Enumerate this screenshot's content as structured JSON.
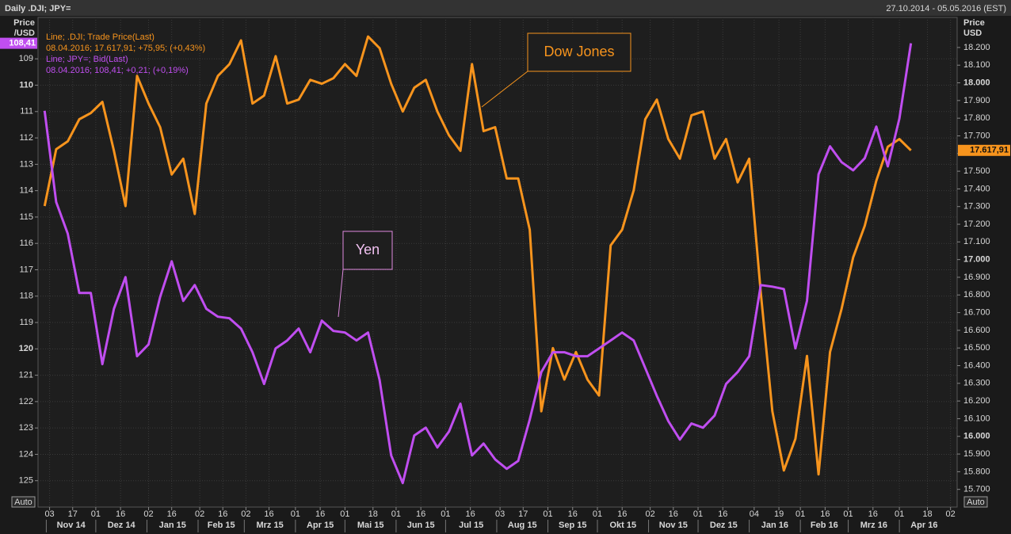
{
  "chart_data": {
    "type": "line",
    "title": "Daily .DJI; JPY=",
    "subtitle": "27.10.2014 - 05.05.2016 (EST)",
    "ylabel": "Price",
    "ylabel_unit": "/USD",
    "y2label": "Price",
    "y2label_unit": "USD",
    "auto_buttons": [
      "Auto",
      "Auto"
    ],
    "annotations": [
      "Dow Jones",
      "Yen"
    ],
    "grid": true,
    "x": [
      "2014-10-31",
      "2014-11-07",
      "2014-11-14",
      "2014-11-21",
      "2014-11-28",
      "2014-12-05",
      "2014-12-12",
      "2014-12-19",
      "2014-12-26",
      "2015-01-02",
      "2015-01-09",
      "2015-01-16",
      "2015-01-23",
      "2015-01-30",
      "2015-02-06",
      "2015-02-13",
      "2015-02-20",
      "2015-02-27",
      "2015-03-06",
      "2015-03-13",
      "2015-03-20",
      "2015-03-27",
      "2015-04-03",
      "2015-04-10",
      "2015-04-17",
      "2015-04-24",
      "2015-05-01",
      "2015-05-08",
      "2015-05-15",
      "2015-05-22",
      "2015-05-29",
      "2015-06-05",
      "2015-06-12",
      "2015-06-19",
      "2015-06-26",
      "2015-07-03",
      "2015-07-10",
      "2015-07-17",
      "2015-07-24",
      "2015-07-31",
      "2015-08-07",
      "2015-08-14",
      "2015-08-21",
      "2015-08-28",
      "2015-09-04",
      "2015-09-11",
      "2015-09-18",
      "2015-09-25",
      "2015-10-02",
      "2015-10-09",
      "2015-10-16",
      "2015-10-23",
      "2015-10-30",
      "2015-11-06",
      "2015-11-13",
      "2015-11-20",
      "2015-11-27",
      "2015-12-04",
      "2015-12-11",
      "2015-12-18",
      "2015-12-25",
      "2016-01-01",
      "2016-01-08",
      "2016-01-15",
      "2016-01-22",
      "2016-01-29",
      "2016-02-05",
      "2016-02-12",
      "2016-02-19",
      "2016-02-26",
      "2016-03-04",
      "2016-03-11",
      "2016-03-18",
      "2016-03-25",
      "2016-04-01",
      "2016-04-08"
    ],
    "xlim": [
      "2014-10-27",
      "2016-05-06"
    ],
    "xticks": [
      {
        "value": "2014-11-03",
        "label": "03"
      },
      {
        "value": "2014-11-17",
        "label": "17"
      },
      {
        "value": "2014-12-01",
        "label": "01"
      },
      {
        "value": "2014-12-16",
        "label": "16"
      },
      {
        "value": "2015-01-02",
        "label": "02"
      },
      {
        "value": "2015-01-16",
        "label": "16"
      },
      {
        "value": "2015-02-02",
        "label": "02"
      },
      {
        "value": "2015-02-16",
        "label": "16"
      },
      {
        "value": "2015-03-02",
        "label": "02"
      },
      {
        "value": "2015-03-16",
        "label": "16"
      },
      {
        "value": "2015-04-01",
        "label": "01"
      },
      {
        "value": "2015-04-16",
        "label": "16"
      },
      {
        "value": "2015-05-01",
        "label": "01"
      },
      {
        "value": "2015-05-18",
        "label": "18"
      },
      {
        "value": "2015-06-01",
        "label": "01"
      },
      {
        "value": "2015-06-16",
        "label": "16"
      },
      {
        "value": "2015-07-01",
        "label": "01"
      },
      {
        "value": "2015-07-16",
        "label": "16"
      },
      {
        "value": "2015-08-03",
        "label": "03"
      },
      {
        "value": "2015-08-17",
        "label": "17"
      },
      {
        "value": "2015-09-01",
        "label": "01"
      },
      {
        "value": "2015-09-16",
        "label": "16"
      },
      {
        "value": "2015-10-01",
        "label": "01"
      },
      {
        "value": "2015-10-16",
        "label": "16"
      },
      {
        "value": "2015-11-02",
        "label": "02"
      },
      {
        "value": "2015-11-16",
        "label": "16"
      },
      {
        "value": "2015-12-01",
        "label": "01"
      },
      {
        "value": "2015-12-16",
        "label": "16"
      },
      {
        "value": "2016-01-04",
        "label": "04"
      },
      {
        "value": "2016-01-19",
        "label": "19"
      },
      {
        "value": "2016-02-01",
        "label": "01"
      },
      {
        "value": "2016-02-16",
        "label": "16"
      },
      {
        "value": "2016-03-01",
        "label": "01"
      },
      {
        "value": "2016-03-16",
        "label": "16"
      },
      {
        "value": "2016-04-01",
        "label": "01"
      },
      {
        "value": "2016-04-18",
        "label": "18"
      },
      {
        "value": "2016-05-02",
        "label": "02"
      }
    ],
    "xmonths": [
      {
        "value": "2014-11",
        "label": "Nov 14"
      },
      {
        "value": "2014-12",
        "label": "Dez 14"
      },
      {
        "value": "2015-01",
        "label": "Jan 15"
      },
      {
        "value": "2015-02",
        "label": "Feb 15"
      },
      {
        "value": "2015-03",
        "label": "Mrz 15"
      },
      {
        "value": "2015-04",
        "label": "Apr 15"
      },
      {
        "value": "2015-05",
        "label": "Mai 15"
      },
      {
        "value": "2015-06",
        "label": "Jun 15"
      },
      {
        "value": "2015-07",
        "label": "Jul 15"
      },
      {
        "value": "2015-08",
        "label": "Aug 15"
      },
      {
        "value": "2015-09",
        "label": "Sep 15"
      },
      {
        "value": "2015-10",
        "label": "Okt 15"
      },
      {
        "value": "2015-11",
        "label": "Nov 15"
      },
      {
        "value": "2015-12",
        "label": "Dez 15"
      },
      {
        "value": "2016-01",
        "label": "Jan 16"
      },
      {
        "value": "2016-02",
        "label": "Feb 16"
      },
      {
        "value": "2016-03",
        "label": "Mrz 16"
      },
      {
        "value": "2016-04",
        "label": "Apr 16"
      }
    ],
    "ylim": [
      126.0,
      107.43
    ],
    "yticks": [
      109,
      110,
      111,
      112,
      113,
      114,
      115,
      116,
      117,
      118,
      119,
      120,
      121,
      122,
      123,
      124,
      125
    ],
    "y2lim": [
      15600,
      18370
    ],
    "y2ticks": [
      {
        "value": 15700,
        "label": "15.700"
      },
      {
        "value": 15800,
        "label": "15.800"
      },
      {
        "value": 15900,
        "label": "15.900"
      },
      {
        "value": 16000,
        "label": "16.000"
      },
      {
        "value": 16100,
        "label": "16.100"
      },
      {
        "value": 16200,
        "label": "16.200"
      },
      {
        "value": 16300,
        "label": "16.300"
      },
      {
        "value": 16400,
        "label": "16.400"
      },
      {
        "value": 16500,
        "label": "16.500"
      },
      {
        "value": 16600,
        "label": "16.600"
      },
      {
        "value": 16700,
        "label": "16.700"
      },
      {
        "value": 16800,
        "label": "16.800"
      },
      {
        "value": 16900,
        "label": "16.900"
      },
      {
        "value": 17000,
        "label": "17.000"
      },
      {
        "value": 17100,
        "label": "17.100"
      },
      {
        "value": 17200,
        "label": "17.200"
      },
      {
        "value": 17300,
        "label": "17.300"
      },
      {
        "value": 17400,
        "label": "17.400"
      },
      {
        "value": 17500,
        "label": "17.500"
      },
      {
        "value": 17600,
        "label": "17.600"
      },
      {
        "value": 17700,
        "label": "17.700"
      },
      {
        "value": 17800,
        "label": "17.800"
      },
      {
        "value": 17900,
        "label": "17.900"
      },
      {
        "value": 18000,
        "label": "18.000"
      },
      {
        "value": 18100,
        "label": "18.100"
      },
      {
        "value": 18200,
        "label": "18.200"
      }
    ],
    "series": [
      {
        "name": "Line; .DJI; Trade Price(Last)",
        "detail": "08.04.2016; 17.617,91; +75,95; (+0,43%)",
        "color": "#f7941d",
        "axis": "y2",
        "last_label": "17.617,91",
        "values": [
          17303,
          17624,
          17669,
          17794,
          17829,
          17892,
          17615,
          17303,
          18039,
          17883,
          17749,
          17481,
          17571,
          17258,
          17883,
          18039,
          18106,
          18240,
          17883,
          17928,
          18151,
          17883,
          17905,
          18017,
          17995,
          18026,
          18106,
          18039,
          18262,
          18196,
          17995,
          17838,
          17972,
          18017,
          17838,
          17704,
          17615,
          18106,
          17727,
          17749,
          17459,
          17459,
          17169,
          16142,
          16499,
          16321,
          16477,
          16321,
          16231,
          17080,
          17169,
          17392,
          17794,
          17905,
          17682,
          17571,
          17816,
          17838,
          17571,
          17682,
          17437,
          17571,
          16812,
          16142,
          15807,
          15986,
          16455,
          15785,
          16477,
          16722,
          17013,
          17191,
          17446,
          17638,
          17682,
          17617.91
        ]
      },
      {
        "name": "Line; JPY=; Bid(Last)",
        "detail": "08.04.2016; 108,41; +0,21; (+0,19%)",
        "color": "#c04ef0",
        "last_label": "108,41",
        "values": [
          110.97,
          114.43,
          115.63,
          117.88,
          117.88,
          120.58,
          118.48,
          117.28,
          120.28,
          119.83,
          118.03,
          116.68,
          118.18,
          117.58,
          118.48,
          118.78,
          118.84,
          119.23,
          120.13,
          121.33,
          119.98,
          119.68,
          119.23,
          120.13,
          118.93,
          119.32,
          119.38,
          119.68,
          119.38,
          121.18,
          124.04,
          125.09,
          123.29,
          122.99,
          123.74,
          123.14,
          122.08,
          124.04,
          123.59,
          124.19,
          124.55,
          124.25,
          122.68,
          120.88,
          120.13,
          120.13,
          120.28,
          120.28,
          119.98,
          119.68,
          119.38,
          119.68,
          120.73,
          121.78,
          122.74,
          123.44,
          122.83,
          122.99,
          122.53,
          121.33,
          120.88,
          120.28,
          117.58,
          117.64,
          117.73,
          119.98,
          118.18,
          113.38,
          112.32,
          112.92,
          113.23,
          112.77,
          111.57,
          113.08,
          111.27,
          108.41
        ]
      }
    ]
  }
}
